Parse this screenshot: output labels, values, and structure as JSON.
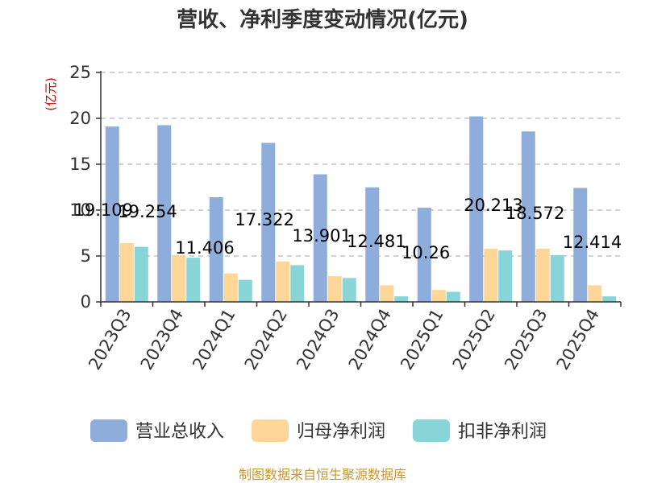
{
  "chart_data": {
    "type": "bar",
    "title": "营收、净利季度变动情况(亿元)",
    "ylabel": "(亿元)",
    "xlabel": "",
    "ylim": [
      0,
      25
    ],
    "yticks": [
      0,
      5,
      10,
      15,
      20,
      25
    ],
    "grid": true,
    "legend_position": "bottom",
    "categories": [
      "2023Q3",
      "2023Q4",
      "2024Q1",
      "2024Q2",
      "2024Q3",
      "2024Q4",
      "2025Q1",
      "2025Q2",
      "2025Q3",
      "2025Q4"
    ],
    "series": [
      {
        "name": "营业总收入",
        "color": "#8eaddb",
        "values": [
          19.109,
          19.254,
          11.406,
          17.322,
          13.901,
          12.481,
          10.26,
          20.213,
          18.572,
          12.414
        ],
        "labels": [
          "19.109",
          "19.254",
          "11.406",
          "17.322",
          "13.901",
          "12.481",
          "10.26",
          "20.213",
          "18.572",
          "12.414"
        ]
      },
      {
        "name": "归母净利润",
        "color": "#fdd698",
        "values": [
          6.4,
          5.1,
          3.1,
          4.4,
          2.8,
          1.8,
          1.3,
          5.8,
          5.8,
          1.8
        ]
      },
      {
        "name": "扣非净利润",
        "color": "#87d5d7",
        "values": [
          6.0,
          4.8,
          2.4,
          4.0,
          2.6,
          0.6,
          1.1,
          5.6,
          5.1,
          0.6
        ]
      }
    ]
  },
  "footer": {
    "source": "制图数据来自恒生聚源数据库"
  }
}
